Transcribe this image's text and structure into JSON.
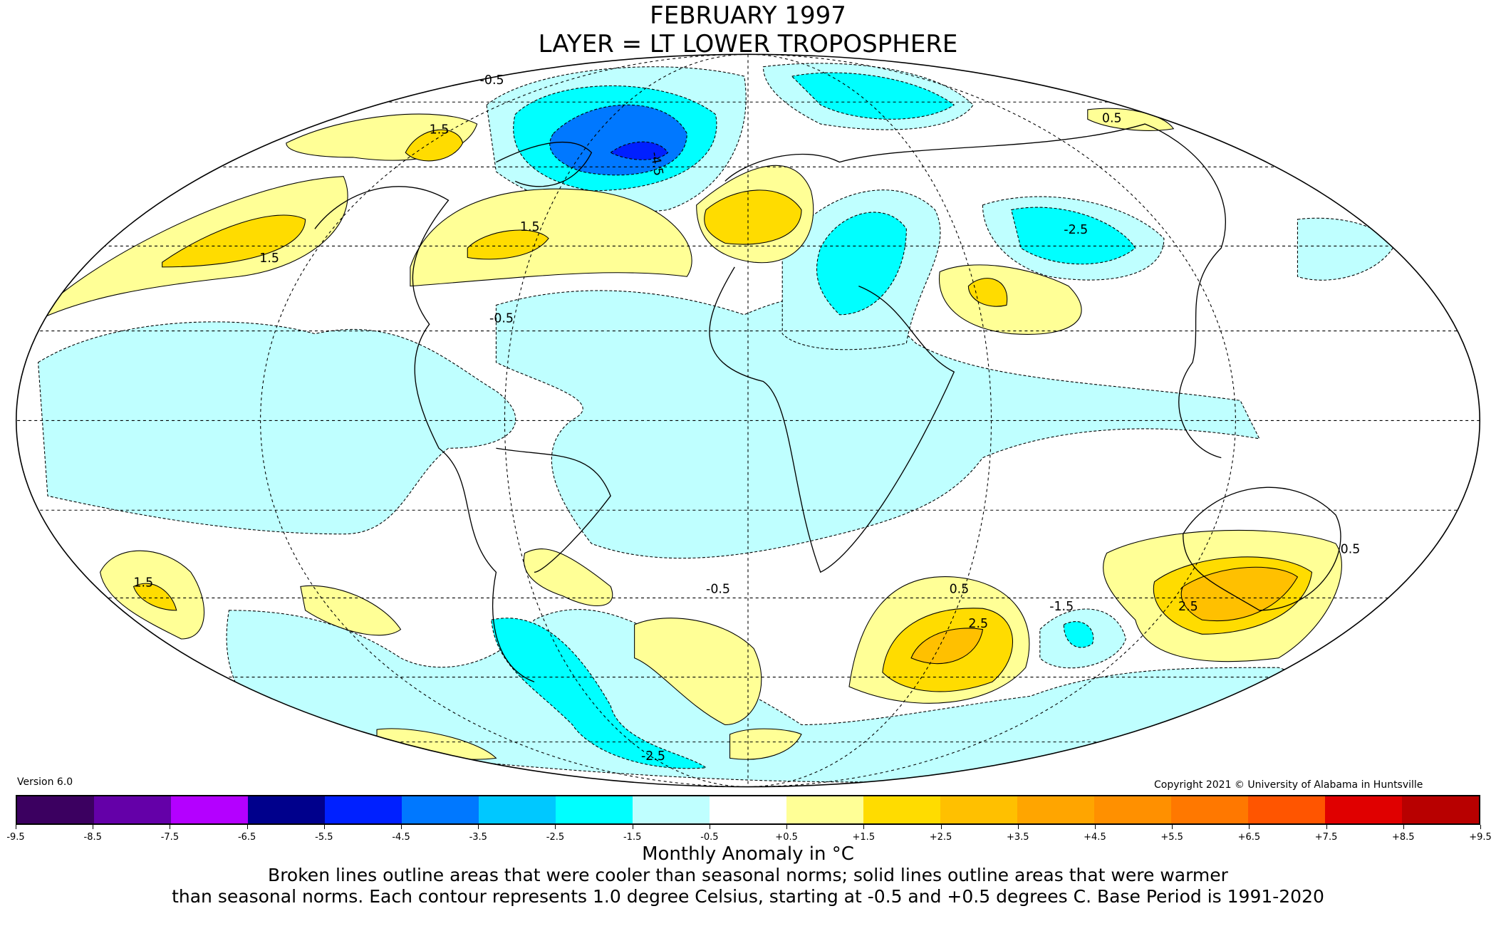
{
  "title": {
    "line1": "FEBRUARY 1997",
    "line2": "LAYER = LT LOWER TROPOSPHERE"
  },
  "version": "Version 6.0",
  "copyright": "Copyright 2021 © University of Alabama in Huntsville",
  "colorbar": {
    "label": "Monthly Anomaly in °C",
    "colors": [
      "#3b0060",
      "#6400a8",
      "#b400ff",
      "#00008c",
      "#0020ff",
      "#0078ff",
      "#00c8ff",
      "#00ffff",
      "#bfffff",
      "#ffffff",
      "#ffff96",
      "#ffdc00",
      "#ffc000",
      "#ffa500",
      "#ff9000",
      "#ff7800",
      "#ff5500",
      "#e00000",
      "#b80000"
    ],
    "ticks": [
      "-9.5",
      "-8.5",
      "-7.5",
      "-6.5",
      "-5.5",
      "-4.5",
      "-3.5",
      "-2.5",
      "-1.5",
      "-0.5",
      "+0.5",
      "+1.5",
      "+2.5",
      "+3.5",
      "+4.5",
      "+5.5",
      "+6.5",
      "+7.5",
      "+8.5",
      "+9.5"
    ]
  },
  "notes": {
    "line1": "Broken lines outline areas that were cooler than seasonal norms; solid lines outline areas that were warmer",
    "line2": "than seasonal norms. Each contour represents 1.0 degree Celsius, starting at -0.5 and +0.5 degrees C. Base Period is 1991-2020"
  },
  "contour_labels": {
    "a": "-0.5",
    "b": "1.5",
    "c": "-4.5",
    "d": "1.5",
    "e": "-2.5",
    "f": "0.5",
    "g": "2.5",
    "h": "-1.5",
    "i": "0.5",
    "j": "-0.5",
    "k": "1.5",
    "l": "0.5",
    "m": "-0.5",
    "n": "2.5",
    "o": "-2.5",
    "p": "1.5"
  }
}
